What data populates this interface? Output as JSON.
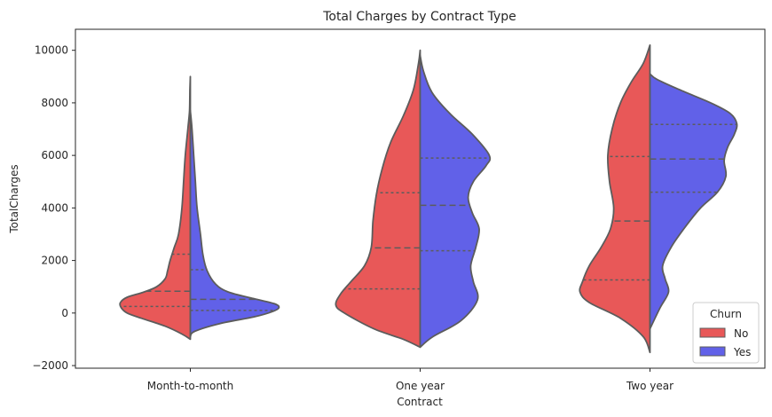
{
  "chart_data": {
    "type": "violin",
    "split": true,
    "inner": "quartile",
    "title": "Total Charges by Contract Type",
    "xlabel": "Contract",
    "ylabel": "TotalCharges",
    "categories": [
      "Month-to-month",
      "One year",
      "Two year"
    ],
    "ylim": [
      -2100,
      10800
    ],
    "yticks": [
      -2000,
      0,
      2000,
      4000,
      6000,
      8000,
      10000
    ],
    "ytick_labels": [
      "−2000",
      "0",
      "2000",
      "4000",
      "6000",
      "8000",
      "10000"
    ],
    "grid": false,
    "legend": {
      "title": "Churn",
      "placement": "lower-right",
      "entries": [
        "No",
        "Yes"
      ]
    },
    "colors": {
      "No": "#e85858",
      "Yes": "#6161e8",
      "edge": "#5c5c5c"
    },
    "series": [
      {
        "name": "No",
        "violins": [
          {
            "category": "Month-to-month",
            "density": [
              [
                -1000,
                0
              ],
              [
                -800,
                0.1
              ],
              [
                -500,
                0.3
              ],
              [
                -200,
                0.58
              ],
              [
                0,
                0.75
              ],
              [
                200,
                0.82
              ],
              [
                400,
                0.83
              ],
              [
                600,
                0.75
              ],
              [
                800,
                0.55
              ],
              [
                1000,
                0.4
              ],
              [
                1300,
                0.3
              ],
              [
                1600,
                0.27
              ],
              [
                2000,
                0.24
              ],
              [
                2500,
                0.19
              ],
              [
                3000,
                0.14
              ],
              [
                4000,
                0.1
              ],
              [
                5000,
                0.08
              ],
              [
                6000,
                0.06
              ],
              [
                7000,
                0.03
              ],
              [
                7700,
                0.01
              ],
              [
                8500,
                0.005
              ],
              [
                9000,
                0
              ]
            ],
            "quartiles": [
              250,
              830,
              2240
            ]
          },
          {
            "category": "One year",
            "density": [
              [
                -1300,
                0
              ],
              [
                -1000,
                0.2
              ],
              [
                -600,
                0.55
              ],
              [
                0,
                0.9
              ],
              [
                300,
                1.0
              ],
              [
                700,
                0.95
              ],
              [
                1200,
                0.82
              ],
              [
                1800,
                0.66
              ],
              [
                2500,
                0.58
              ],
              [
                3500,
                0.56
              ],
              [
                4500,
                0.52
              ],
              [
                5500,
                0.45
              ],
              [
                6500,
                0.35
              ],
              [
                7500,
                0.2
              ],
              [
                8500,
                0.08
              ],
              [
                9500,
                0.02
              ],
              [
                10000,
                0
              ]
            ],
            "quartiles": [
              920,
              2480,
              4580
            ]
          },
          {
            "category": "Two year",
            "density": [
              [
                -1500,
                0
              ],
              [
                -900,
                0.08
              ],
              [
                -200,
                0.35
              ],
              [
                400,
                0.72
              ],
              [
                800,
                0.83
              ],
              [
                1200,
                0.8
              ],
              [
                1800,
                0.72
              ],
              [
                2500,
                0.58
              ],
              [
                3200,
                0.47
              ],
              [
                4000,
                0.43
              ],
              [
                5000,
                0.48
              ],
              [
                6000,
                0.5
              ],
              [
                7000,
                0.45
              ],
              [
                8000,
                0.35
              ],
              [
                8800,
                0.22
              ],
              [
                9500,
                0.08
              ],
              [
                10200,
                0
              ]
            ],
            "quartiles": [
              1260,
              3500,
              5960
            ]
          }
        ]
      },
      {
        "name": "Yes",
        "violins": [
          {
            "category": "Month-to-month",
            "density": [
              [
                -900,
                0
              ],
              [
                -700,
                0.05
              ],
              [
                -400,
                0.35
              ],
              [
                -150,
                0.75
              ],
              [
                50,
                0.97
              ],
              [
                200,
                1.05
              ],
              [
                350,
                1.0
              ],
              [
                550,
                0.75
              ],
              [
                800,
                0.45
              ],
              [
                1100,
                0.3
              ],
              [
                1600,
                0.2
              ],
              [
                2200,
                0.15
              ],
              [
                3000,
                0.12
              ],
              [
                4000,
                0.08
              ],
              [
                5000,
                0.06
              ],
              [
                6000,
                0.04
              ],
              [
                7000,
                0.02
              ],
              [
                7700,
                0
              ]
            ],
            "quartiles": [
              100,
              520,
              1650
            ]
          },
          {
            "category": "One year",
            "density": [
              [
                -1300,
                0
              ],
              [
                -900,
                0.15
              ],
              [
                -300,
                0.48
              ],
              [
                500,
                0.68
              ],
              [
                1200,
                0.63
              ],
              [
                1800,
                0.6
              ],
              [
                2500,
                0.66
              ],
              [
                3200,
                0.7
              ],
              [
                3800,
                0.62
              ],
              [
                4400,
                0.57
              ],
              [
                5000,
                0.63
              ],
              [
                5600,
                0.78
              ],
              [
                6000,
                0.82
              ],
              [
                6800,
                0.62
              ],
              [
                7600,
                0.35
              ],
              [
                8400,
                0.14
              ],
              [
                9200,
                0.04
              ],
              [
                9800,
                0
              ]
            ],
            "quartiles": [
              2370,
              4100,
              5900
            ]
          },
          {
            "category": "Two year",
            "density": [
              [
                -600,
                0
              ],
              [
                200,
                0.12
              ],
              [
                800,
                0.22
              ],
              [
                1300,
                0.18
              ],
              [
                1800,
                0.15
              ],
              [
                2500,
                0.25
              ],
              [
                3200,
                0.4
              ],
              [
                4000,
                0.6
              ],
              [
                4600,
                0.8
              ],
              [
                5200,
                0.9
              ],
              [
                5800,
                0.88
              ],
              [
                6300,
                0.92
              ],
              [
                6800,
                1.0
              ],
              [
                7200,
                1.03
              ],
              [
                7600,
                0.95
              ],
              [
                8000,
                0.72
              ],
              [
                8500,
                0.35
              ],
              [
                8900,
                0.08
              ],
              [
                9100,
                0
              ]
            ],
            "quartiles": [
              4600,
              5860,
              7180
            ]
          }
        ]
      }
    ]
  }
}
